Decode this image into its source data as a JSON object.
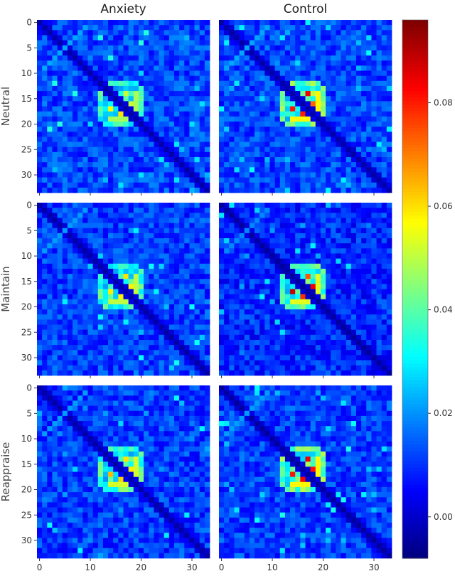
{
  "chart_data": {
    "type": "heatmap",
    "title": "",
    "columns": [
      "Anxiety",
      "Control"
    ],
    "rows": [
      "Neutral",
      "Maintain",
      "Reappraise"
    ],
    "matrix_size": 34,
    "x_ticks": [
      0,
      10,
      20,
      30
    ],
    "y_ticks": [
      0,
      5,
      10,
      15,
      20,
      25,
      30
    ],
    "colormap": "jet",
    "colorbar": {
      "range": [
        -0.008,
        0.096
      ],
      "ticks": [
        0.0,
        0.02,
        0.04,
        0.06,
        0.08
      ],
      "tick_labels": [
        "0.00",
        "0.02",
        "0.04",
        "0.06",
        "0.08"
      ]
    },
    "panels": [
      {
        "row": "Neutral",
        "column": "Anxiety",
        "peak": 0.064,
        "ring": 0.04,
        "background": 0.012,
        "min": -0.004
      },
      {
        "row": "Neutral",
        "column": "Control",
        "peak": 0.088,
        "ring": 0.048,
        "background": 0.012,
        "min": -0.004
      },
      {
        "row": "Maintain",
        "column": "Anxiety",
        "peak": 0.066,
        "ring": 0.042,
        "background": 0.011,
        "min": -0.004
      },
      {
        "row": "Maintain",
        "column": "Control",
        "peak": 0.094,
        "ring": 0.045,
        "background": 0.009,
        "min": -0.005
      },
      {
        "row": "Reappraise",
        "column": "Anxiety",
        "peak": 0.074,
        "ring": 0.044,
        "background": 0.011,
        "min": -0.004
      },
      {
        "row": "Reappraise",
        "column": "Control",
        "peak": 0.096,
        "ring": 0.048,
        "background": 0.011,
        "min": -0.005
      }
    ]
  }
}
